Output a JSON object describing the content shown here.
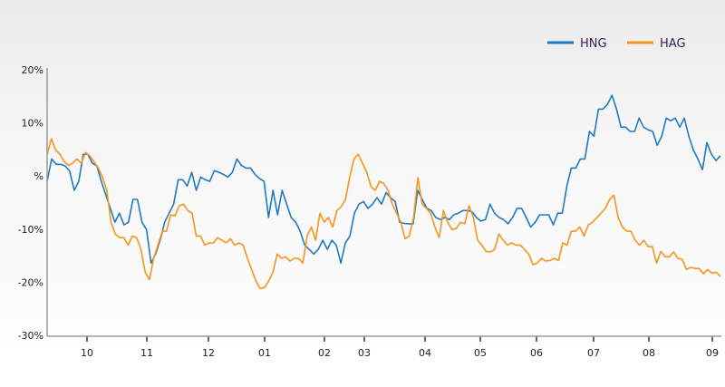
{
  "chart_data": {
    "type": "line",
    "title": "",
    "xlabel": "",
    "ylabel": "",
    "ylim": [
      -30,
      20
    ],
    "grid": false,
    "legend_placement": "top-right",
    "y_ticks": [
      {
        "value": 20,
        "label": "20%"
      },
      {
        "value": 10,
        "label": "10%"
      },
      {
        "value": 0,
        "label": "%"
      },
      {
        "value": -10,
        "label": "-10%"
      },
      {
        "value": -20,
        "label": "-20%"
      },
      {
        "value": -30,
        "label": "-30%"
      }
    ],
    "x_ticks": [
      "10",
      "11",
      "12",
      "01",
      "02",
      "03",
      "04",
      "05",
      "06",
      "07",
      "08",
      "09"
    ],
    "series": [
      {
        "name": "HNG",
        "color": "#1f7ac3",
        "values": [
          -1.0,
          3.2,
          2.2,
          2.2,
          1.9,
          0.9,
          -2.7,
          -1.0,
          4.1,
          4.1,
          2.4,
          1.9,
          -1.0,
          -3.6,
          -6.1,
          -8.7,
          -7.0,
          -9.2,
          -8.7,
          -4.4,
          -4.4,
          -8.7,
          -10.1,
          -16.4,
          -14.7,
          -12.1,
          -8.7,
          -7.0,
          -5.3,
          -0.7,
          -0.7,
          -1.9,
          0.7,
          -2.7,
          -0.2,
          -0.7,
          -1.0,
          1.0,
          0.7,
          0.3,
          -0.2,
          0.7,
          3.2,
          2.0,
          1.5,
          1.5,
          0.3,
          -0.5,
          -1.0,
          -7.8,
          -2.7,
          -7.3,
          -2.7,
          -5.3,
          -7.8,
          -8.7,
          -10.4,
          -13.0,
          -13.8,
          -14.7,
          -13.8,
          -12.1,
          -13.8,
          -12.1,
          -13.0,
          -16.4,
          -12.6,
          -11.3,
          -7.0,
          -5.3,
          -4.8,
          -6.1,
          -5.3,
          -4.1,
          -5.3,
          -3.1,
          -4.1,
          -4.8,
          -8.7,
          -8.9,
          -9.0,
          -9.0,
          -2.7,
          -4.4,
          -6.1,
          -6.5,
          -7.8,
          -8.2,
          -7.8,
          -8.2,
          -7.3,
          -7.0,
          -6.5,
          -6.5,
          -6.7,
          -7.8,
          -8.5,
          -8.2,
          -5.3,
          -7.0,
          -7.8,
          -8.2,
          -9.0,
          -7.8,
          -6.1,
          -6.1,
          -7.8,
          -9.6,
          -8.7,
          -7.3,
          -7.3,
          -7.3,
          -9.2,
          -7.0,
          -7.0,
          -1.9,
          1.5,
          1.5,
          3.2,
          3.2,
          8.4,
          7.5,
          12.6,
          12.6,
          13.5,
          15.2,
          12.6,
          9.2,
          9.2,
          8.4,
          8.4,
          10.9,
          9.2,
          8.7,
          8.4,
          5.8,
          7.5,
          10.9,
          10.4,
          10.9,
          9.2,
          10.9,
          7.5,
          4.9,
          3.2,
          1.2,
          6.3,
          4.1,
          2.9,
          3.8
        ]
      },
      {
        "name": "HAG",
        "color": "#f7941d",
        "values": [
          4.1,
          7.0,
          4.9,
          4.1,
          2.7,
          2.0,
          2.4,
          3.2,
          2.4,
          4.4,
          3.8,
          2.7,
          1.5,
          -0.2,
          -2.7,
          -8.7,
          -10.9,
          -11.6,
          -11.6,
          -13.0,
          -11.3,
          -11.6,
          -13.8,
          -18.1,
          -19.5,
          -15.5,
          -13.0,
          -10.4,
          -10.4,
          -7.3,
          -7.5,
          -5.6,
          -5.3,
          -6.5,
          -7.0,
          -11.3,
          -11.3,
          -13.0,
          -12.6,
          -12.6,
          -11.6,
          -12.1,
          -12.6,
          -11.8,
          -13.0,
          -12.6,
          -13.0,
          -15.5,
          -17.6,
          -19.8,
          -21.2,
          -21.0,
          -19.8,
          -18.1,
          -14.7,
          -15.5,
          -15.2,
          -16.0,
          -15.5,
          -15.5,
          -16.4,
          -11.3,
          -9.6,
          -12.1,
          -7.0,
          -8.7,
          -7.8,
          -9.6,
          -6.5,
          -5.8,
          -4.4,
          -0.2,
          3.2,
          4.1,
          2.4,
          0.7,
          -2.0,
          -2.7,
          -1.0,
          -1.4,
          -2.7,
          -5.3,
          -7.0,
          -8.7,
          -11.8,
          -11.3,
          -7.8,
          -0.3,
          -5.3,
          -6.1,
          -7.0,
          -9.6,
          -11.6,
          -6.5,
          -8.7,
          -10.1,
          -9.9,
          -8.7,
          -9.0,
          -5.6,
          -7.8,
          -12.1,
          -13.0,
          -14.2,
          -14.3,
          -13.8,
          -10.9,
          -12.1,
          -13.0,
          -12.6,
          -13.0,
          -13.0,
          -13.8,
          -14.7,
          -16.7,
          -16.4,
          -15.5,
          -16.0,
          -15.9,
          -15.5,
          -15.9,
          -12.6,
          -13.0,
          -10.4,
          -10.4,
          -9.6,
          -11.3,
          -9.2,
          -8.7,
          -7.8,
          -7.0,
          -6.1,
          -4.4,
          -3.6,
          -7.8,
          -9.6,
          -10.4,
          -10.4,
          -12.1,
          -13.0,
          -12.1,
          -13.3,
          -13.3,
          -16.4,
          -14.2,
          -15.2,
          -15.2,
          -14.3,
          -15.5,
          -15.7,
          -17.6,
          -17.2,
          -17.4,
          -17.4,
          -18.4,
          -17.6,
          -18.3,
          -18.1,
          -18.9
        ]
      }
    ]
  }
}
